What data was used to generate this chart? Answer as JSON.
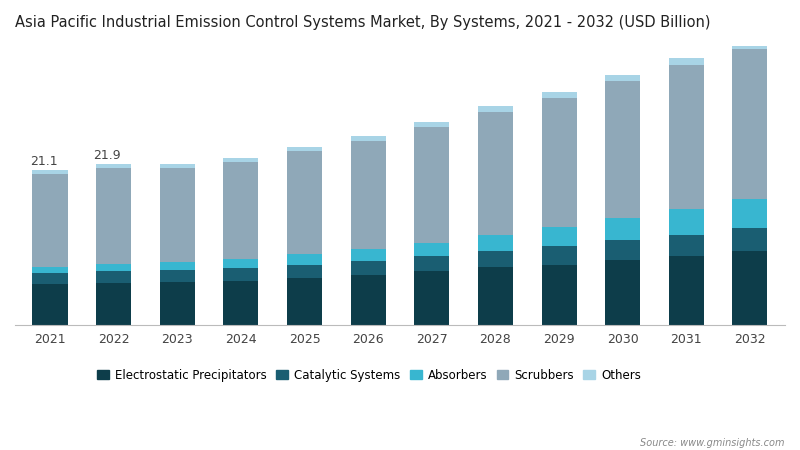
{
  "title": "Asia Pacific Industrial Emission Control Systems Market, By Systems, 2021 - 2032 (USD Billion)",
  "years": [
    2021,
    2022,
    2023,
    2024,
    2025,
    2026,
    2027,
    2028,
    2029,
    2030,
    2031,
    2032
  ],
  "series": {
    "Electrostatic Precipitators": [
      5.5,
      5.7,
      5.8,
      6.0,
      6.4,
      6.8,
      7.3,
      7.8,
      8.2,
      8.8,
      9.4,
      10.0
    ],
    "Catalytic Systems": [
      1.5,
      1.6,
      1.6,
      1.7,
      1.8,
      1.9,
      2.1,
      2.3,
      2.5,
      2.7,
      2.9,
      3.2
    ],
    "Absorbers": [
      0.9,
      1.0,
      1.1,
      1.2,
      1.4,
      1.6,
      1.8,
      2.2,
      2.6,
      3.0,
      3.5,
      4.0
    ],
    "Scrubbers": [
      12.7,
      13.1,
      12.9,
      13.3,
      14.1,
      14.8,
      15.8,
      16.8,
      17.7,
      18.8,
      19.7,
      20.5
    ],
    "Others": [
      0.5,
      0.5,
      0.5,
      0.5,
      0.6,
      0.6,
      0.7,
      0.7,
      0.8,
      0.8,
      0.9,
      1.0
    ]
  },
  "annotations": {
    "2021": "21.1",
    "2022": "21.9"
  },
  "colors": {
    "Electrostatic Precipitators": "#0d3d4a",
    "Catalytic Systems": "#1a5e72",
    "Absorbers": "#38b6d0",
    "Scrubbers": "#8fa8b8",
    "Others": "#a8d4e6"
  },
  "background_color": "#ffffff",
  "bar_width": 0.55,
  "ylim": [
    0,
    38
  ],
  "source_text": "Source: www.gminsights.com",
  "title_fontsize": 10.5,
  "annotation_fontsize": 9,
  "legend_fontsize": 8.5
}
